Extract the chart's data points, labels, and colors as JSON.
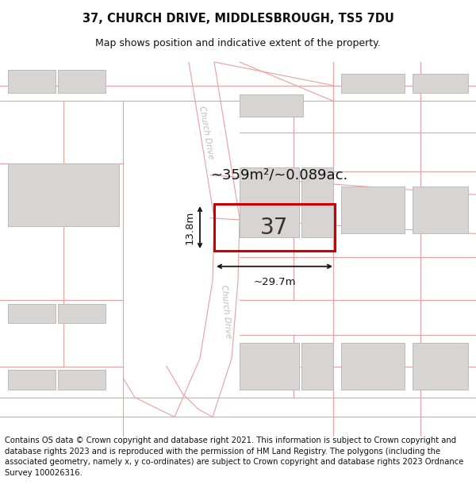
{
  "title": "37, CHURCH DRIVE, MIDDLESBROUGH, TS5 7DU",
  "subtitle": "Map shows position and indicative extent of the property.",
  "footer": "Contains OS data © Crown copyright and database right 2021. This information is subject to Crown copyright and database rights 2023 and is reproduced with the permission of HM Land Registry. The polygons (including the associated geometry, namely x, y co-ordinates) are subject to Crown copyright and database rights 2023 Ordnance Survey 100026316.",
  "bg_color": "#ffffff",
  "map_bg": "#ffffff",
  "road_line_color": "#e8a0a0",
  "building_fill": "#d8d4d4",
  "building_edge": "#bbbbbb",
  "highlight_color": "#cc0000",
  "highlight_label": "37",
  "area_text": "~359m²/~0.089ac.",
  "width_text": "~29.7m",
  "height_text": "13.8m",
  "title_fontsize": 10.5,
  "subtitle_fontsize": 9,
  "footer_fontsize": 7.2,
  "church_drive_label_color": "#bbbbbb",
  "dim_line_color": "#111111",
  "label37_fontsize": 20,
  "area_fontsize": 13
}
